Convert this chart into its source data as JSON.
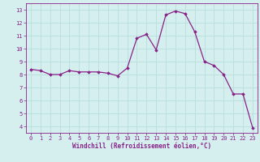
{
  "x": [
    0,
    1,
    2,
    3,
    4,
    5,
    6,
    7,
    8,
    9,
    10,
    11,
    12,
    13,
    14,
    15,
    16,
    17,
    18,
    19,
    20,
    21,
    22,
    23
  ],
  "y": [
    8.4,
    8.3,
    8.0,
    8.0,
    8.3,
    8.2,
    8.2,
    8.2,
    8.1,
    7.9,
    8.5,
    10.8,
    11.1,
    9.9,
    12.6,
    12.9,
    12.7,
    11.3,
    9.0,
    8.7,
    8.0,
    6.5,
    6.5,
    3.9
  ],
  "line_color": "#882288",
  "marker": "D",
  "markersize": 1.8,
  "linewidth": 0.9,
  "bg_color": "#d5efef",
  "grid_color": "#b8dede",
  "xlabel": "Windchill (Refroidissement éolien,°C)",
  "xlabel_color": "#882288",
  "tick_color": "#882288",
  "xlim": [
    -0.5,
    23.5
  ],
  "ylim": [
    3.5,
    13.5
  ],
  "yticks": [
    4,
    5,
    6,
    7,
    8,
    9,
    10,
    11,
    12,
    13
  ],
  "xticks": [
    0,
    1,
    2,
    3,
    4,
    5,
    6,
    7,
    8,
    9,
    10,
    11,
    12,
    13,
    14,
    15,
    16,
    17,
    18,
    19,
    20,
    21,
    22,
    23
  ],
  "tick_fontsize": 5.0,
  "xlabel_fontsize": 5.5
}
